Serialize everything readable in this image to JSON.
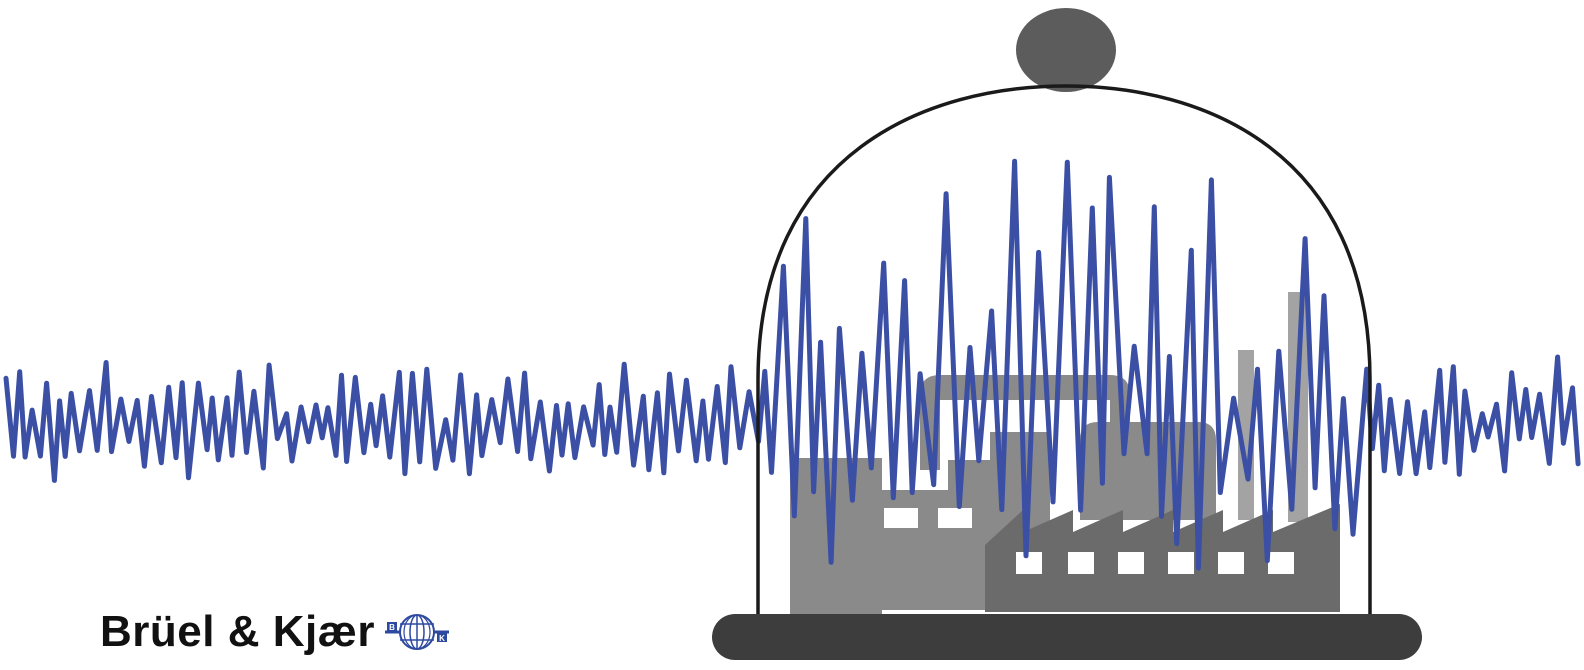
{
  "brand": {
    "name": "Brüel & Kjær",
    "logo_letters": [
      "B",
      "K"
    ]
  },
  "illustration": {
    "subject": "factory under glass dome with noise waveform",
    "icons": [
      "bell-jar-dome-icon",
      "factory-icon",
      "waveform-icon",
      "globe-logo-icon"
    ]
  },
  "colors": {
    "waveform": "#3b4fa5",
    "dome_outline": "#1a1a1a",
    "dome_knob": "#5c5c5c",
    "dome_base": "#3d3d3d",
    "factory_dark": "#6b6b6b",
    "factory_mid": "#8a8a8a",
    "factory_light": "#a3a3a3",
    "window": "#ffffff",
    "brand_text": "#111111",
    "logo_blue": "#2e4aa0"
  }
}
